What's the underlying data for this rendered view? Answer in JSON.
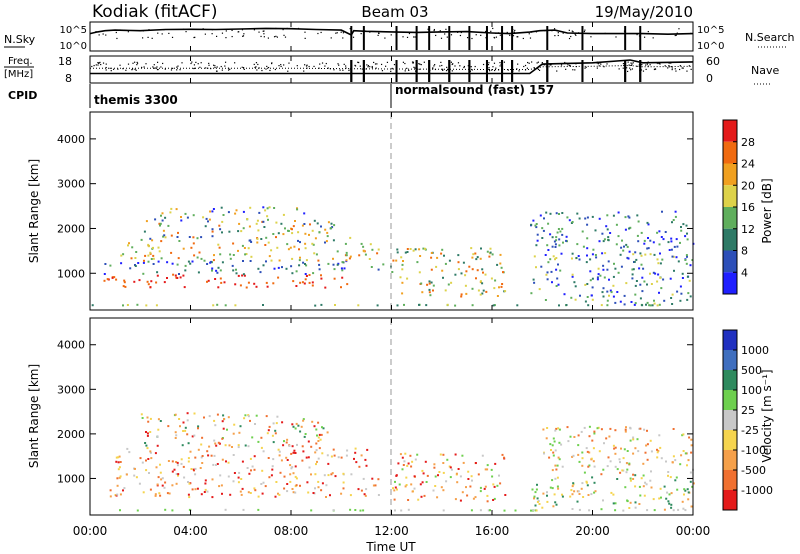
{
  "header": {
    "station": "Kodiak (fitACF)",
    "beam": "Beam 03",
    "date": "19/May/2010"
  },
  "aux_panels": {
    "nsky_label": "N.Sky",
    "nsky_ticks": [
      "10^5",
      "10^0"
    ],
    "nsearch_label": "N.Search",
    "nsearch_ticks": [
      "10^5",
      "10^0"
    ],
    "freq_label_line1": "Freq.",
    "freq_label_line2": "[MHz]",
    "freq_ticks": [
      "18",
      "8"
    ],
    "nave_label": "Nave",
    "nave_ticks": [
      "60",
      "0"
    ],
    "cpid_label": "CPID",
    "cpid_segments": [
      {
        "name": "themis 3300",
        "start_hour": 0
      },
      {
        "name": "normalsound (fast) 157",
        "start_hour": 12
      }
    ]
  },
  "time_axis": {
    "label": "Time UT",
    "ticks": [
      "00:00",
      "04:00",
      "08:00",
      "12:00",
      "16:00",
      "20:00",
      "00:00"
    ],
    "range_hours": [
      0,
      24
    ],
    "marker_hour": 12
  },
  "range_axis": {
    "label": "Slant Range [km]",
    "ticks": [
      "1000",
      "2000",
      "3000",
      "4000"
    ],
    "range_km": [
      180,
      4600
    ]
  },
  "colorbars": {
    "power": {
      "label": "Power [dB]",
      "ticks": [
        "4",
        "8",
        "12",
        "16",
        "20",
        "24",
        "28"
      ],
      "colors": [
        "#1f1fff",
        "#2d4fb8",
        "#2e7a66",
        "#5fae5c",
        "#ddd24a",
        "#f0a020",
        "#f06a10",
        "#e41a1a"
      ]
    },
    "velocity": {
      "label": "Velocity [m s⁻¹]",
      "ticks": [
        "1000",
        "500",
        "100",
        "25",
        "-25",
        "-100",
        "-500",
        "-1000"
      ],
      "colors": [
        "#2030c0",
        "#3f6fbf",
        "#2e8a5e",
        "#6ed04e",
        "#c8c8c8",
        "#f5d44e",
        "#f5a04a",
        "#f07030",
        "#e41a1a"
      ]
    }
  },
  "chart_data": [
    {
      "type": "line",
      "title": "N.Sky / N.Search",
      "x_range": [
        0,
        24
      ],
      "series": [
        {
          "name": "N.Sky",
          "x": [
            0,
            0.3,
            0.6,
            1,
            2,
            3,
            4,
            5,
            6,
            7,
            8,
            9,
            10,
            10.4,
            10.5,
            11,
            12,
            13,
            14,
            15,
            16,
            16.7,
            17.5,
            17.9,
            18.5,
            19,
            20,
            21,
            22,
            23,
            24
          ],
          "y": [
            0.6,
            0.66,
            0.7,
            0.72,
            0.7,
            0.74,
            0.75,
            0.74,
            0.76,
            0.78,
            0.77,
            0.74,
            0.72,
            0.55,
            0.7,
            0.68,
            0.66,
            0.64,
            0.66,
            0.67,
            0.62,
            0.6,
            0.65,
            0.7,
            0.72,
            0.62,
            0.6,
            0.6,
            0.6,
            0.58,
            0.6
          ]
        }
      ]
    },
    {
      "type": "line",
      "title": "Freq / Nave",
      "x_range": [
        0,
        24
      ],
      "series": [
        {
          "name": "Freq",
          "x": [
            0,
            4,
            8,
            12,
            16,
            17.5,
            18,
            20,
            21.5,
            22,
            24
          ],
          "y": [
            0.35,
            0.35,
            0.35,
            0.35,
            0.35,
            0.35,
            0.7,
            0.75,
            0.85,
            0.75,
            0.78
          ]
        },
        {
          "name": "Nave",
          "x": [
            0,
            4,
            8,
            12,
            16,
            17.5,
            18,
            20,
            21.5,
            22,
            24
          ],
          "y": [
            0.55,
            0.55,
            0.55,
            0.52,
            0.5,
            0.5,
            0.6,
            0.62,
            0.65,
            0.6,
            0.62
          ]
        }
      ]
    },
    {
      "type": "heatmap",
      "title": "Power",
      "x_range_hours": [
        0,
        24
      ],
      "y_range_km": [
        180,
        4600
      ],
      "bands": [
        {
          "t0": 0.0,
          "t1": 24.0,
          "r0": 300,
          "r1": 320,
          "level": [
            2,
            4
          ]
        },
        {
          "t0": 0.5,
          "t1": 10.5,
          "r0": 700,
          "r1": 1000,
          "level": [
            6,
            7
          ]
        },
        {
          "t0": 0.5,
          "t1": 12.0,
          "r0": 1000,
          "r1": 1300,
          "level": [
            0,
            3
          ]
        },
        {
          "t0": 1.0,
          "t1": 11.5,
          "r0": 1300,
          "r1": 1700,
          "level": [
            3,
            6
          ]
        },
        {
          "t0": 2.0,
          "t1": 10.5,
          "r0": 1700,
          "r1": 2200,
          "level": [
            1,
            6
          ]
        },
        {
          "t0": 2.5,
          "t1": 8.5,
          "r0": 2200,
          "r1": 2500,
          "level": [
            0,
            5
          ]
        },
        {
          "t0": 12.0,
          "t1": 16.5,
          "r0": 500,
          "r1": 1600,
          "level": [
            2,
            6
          ]
        },
        {
          "t0": 17.5,
          "t1": 24.0,
          "r0": 300,
          "r1": 1500,
          "level": [
            0,
            4
          ]
        },
        {
          "t0": 17.5,
          "t1": 24.0,
          "r0": 1500,
          "r1": 2400,
          "level": [
            0,
            3
          ]
        }
      ]
    },
    {
      "type": "heatmap",
      "title": "Velocity",
      "x_range_hours": [
        0,
        24
      ],
      "y_range_km": [
        180,
        4600
      ],
      "bands": [
        {
          "t0": 0.0,
          "t1": 24.0,
          "r0": 300,
          "r1": 320,
          "level": [
            3,
            4
          ]
        },
        {
          "t0": 0.5,
          "t1": 11.5,
          "r0": 600,
          "r1": 1100,
          "level": [
            4,
            8
          ]
        },
        {
          "t0": 1.0,
          "t1": 11.0,
          "r0": 1100,
          "r1": 1700,
          "level": [
            4,
            8
          ]
        },
        {
          "t0": 2.0,
          "t1": 9.5,
          "r0": 1700,
          "r1": 2500,
          "level": [
            2,
            8
          ]
        },
        {
          "t0": 12.0,
          "t1": 16.5,
          "r0": 500,
          "r1": 1600,
          "level": [
            3,
            8
          ]
        },
        {
          "t0": 17.5,
          "t1": 24.0,
          "r0": 300,
          "r1": 1100,
          "level": [
            2,
            6
          ]
        },
        {
          "t0": 18.0,
          "t1": 24.0,
          "r0": 1100,
          "r1": 2200,
          "level": [
            3,
            7
          ]
        }
      ]
    }
  ]
}
